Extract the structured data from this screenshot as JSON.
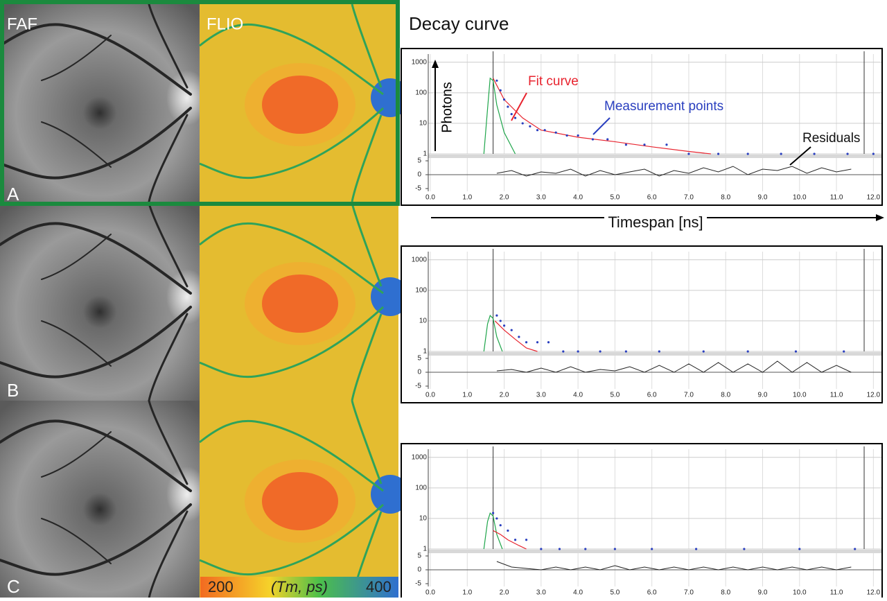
{
  "header": {
    "title": "Decay curve"
  },
  "image_labels": {
    "faf": "FAF",
    "flio": "FLIO"
  },
  "annotations": {
    "photons": "Photons",
    "fit_curve": "Fit curve",
    "measurement_points": "Measurement points",
    "residuals": "Residuals",
    "timespan": "Timespan [ns]"
  },
  "colorbar": {
    "min": "200",
    "unit": "(Tm, ps)",
    "max": "400"
  },
  "decay_axes": {
    "log_y": true,
    "grid": true,
    "xlim": [
      0,
      12.2
    ],
    "xticks": [
      {
        "value": 0,
        "label": "0.0"
      },
      {
        "value": 1,
        "label": "1.0"
      },
      {
        "value": 2,
        "label": "2.0"
      },
      {
        "value": 3,
        "label": "3.0"
      },
      {
        "value": 4,
        "label": "4.0"
      },
      {
        "value": 5,
        "label": "5.0"
      },
      {
        "value": 6,
        "label": "6.0"
      },
      {
        "value": 7,
        "label": "7.0"
      },
      {
        "value": 8,
        "label": "8.0"
      },
      {
        "value": 9,
        "label": "9.0"
      },
      {
        "value": 10,
        "label": "10.0"
      },
      {
        "value": 11,
        "label": "11.0"
      },
      {
        "value": 12,
        "label": "12.0"
      }
    ],
    "ylim": [
      1,
      1500
    ],
    "yticks": [
      1,
      10,
      100,
      1000
    ],
    "residual_ylim": [
      -6,
      6
    ],
    "residual_yticks": [
      -5,
      0,
      5
    ]
  },
  "panels": [
    {
      "label": "A",
      "chart": {
        "type": "line",
        "cursors": [
          1.7,
          11.75
        ],
        "fit": {
          "color": "#e8232e",
          "x": [
            1.7,
            2.0,
            2.5,
            3,
            4,
            5,
            6,
            7,
            7.6
          ],
          "values": [
            300,
            60,
            15,
            6,
            3.5,
            2.5,
            1.7,
            1.2,
            1
          ]
        },
        "irf": {
          "color": "#1ea54a",
          "x": [
            1.45,
            1.55,
            1.62,
            1.7,
            1.8,
            2.0,
            2.3
          ],
          "values": [
            1,
            30,
            300,
            250,
            40,
            5,
            1
          ]
        },
        "points": {
          "color": "#2a3fbf",
          "x": [
            1.8,
            1.9,
            2.0,
            2.1,
            2.2,
            2.3,
            2.5,
            2.7,
            2.9,
            3.1,
            3.4,
            3.7,
            4.0,
            4.4,
            4.8,
            5.3,
            5.8,
            6.4,
            7.0,
            7.8,
            8.6,
            9.5,
            10.4,
            11.3,
            12.0
          ],
          "values": [
            250,
            120,
            60,
            35,
            20,
            15,
            10,
            8,
            6,
            6,
            5,
            4,
            4,
            3,
            3,
            2,
            2,
            2,
            1,
            1,
            1,
            1,
            1,
            1,
            1
          ]
        },
        "residuals": {
          "color": "#222222",
          "x": [
            1.8,
            2.2,
            2.6,
            3.0,
            3.4,
            3.8,
            4.2,
            4.6,
            5.0,
            5.4,
            5.8,
            6.2,
            6.6,
            7.0,
            7.4,
            7.8,
            8.2,
            8.6,
            9.0,
            9.4,
            9.8,
            10.2,
            10.6,
            11.0,
            11.4
          ],
          "values": [
            0.5,
            1.5,
            -0.5,
            1,
            0.5,
            2,
            -0.5,
            1.5,
            0,
            1,
            2,
            -0.5,
            1.5,
            0.5,
            2.5,
            1,
            3,
            0,
            2,
            1.5,
            3,
            0.5,
            2.5,
            1,
            2
          ]
        }
      }
    },
    {
      "label": "B",
      "chart": {
        "type": "line",
        "cursors": [
          1.7,
          11.75
        ],
        "fit": {
          "color": "#e8232e",
          "x": [
            1.75,
            2.0,
            2.3,
            2.6,
            2.9
          ],
          "values": [
            10,
            5,
            2.5,
            1.3,
            1
          ]
        },
        "irf": {
          "color": "#1ea54a",
          "x": [
            1.45,
            1.55,
            1.62,
            1.7,
            1.8,
            1.95
          ],
          "values": [
            1,
            8,
            15,
            12,
            3,
            1
          ]
        },
        "points": {
          "color": "#2a3fbf",
          "x": [
            1.8,
            1.9,
            2.0,
            2.2,
            2.4,
            2.6,
            2.9,
            3.2,
            3.6,
            4.0,
            4.6,
            5.3,
            6.2,
            7.4,
            8.6,
            9.9,
            11.2
          ],
          "values": [
            15,
            10,
            7,
            5,
            3,
            2,
            2,
            2,
            1,
            1,
            1,
            1,
            1,
            1,
            1,
            1,
            1
          ]
        },
        "residuals": {
          "color": "#222222",
          "x": [
            1.8,
            2.2,
            2.6,
            3.0,
            3.4,
            3.8,
            4.2,
            4.6,
            5.0,
            5.4,
            5.8,
            6.2,
            6.6,
            7.0,
            7.4,
            7.8,
            8.2,
            8.6,
            9.0,
            9.4,
            9.8,
            10.2,
            10.6,
            11.0,
            11.4
          ],
          "values": [
            0.5,
            1,
            0,
            1.5,
            0,
            2,
            0,
            1,
            0.5,
            2,
            0,
            2.5,
            0,
            3,
            0,
            3.5,
            0,
            3,
            0,
            4,
            0,
            3.5,
            0,
            2.5,
            0
          ]
        }
      }
    },
    {
      "label": "C",
      "chart": {
        "type": "line",
        "cursors": [
          1.7,
          11.75
        ],
        "fit": {
          "color": "#e8232e",
          "x": [
            1.7,
            1.9,
            2.1,
            2.4,
            2.6
          ],
          "values": [
            4,
            3,
            2,
            1.3,
            1
          ]
        },
        "irf": {
          "color": "#1ea54a",
          "x": [
            1.45,
            1.55,
            1.62,
            1.7,
            1.8,
            1.95
          ],
          "values": [
            1,
            8,
            15,
            12,
            3,
            1
          ]
        },
        "points": {
          "color": "#2a3fbf",
          "x": [
            1.7,
            1.8,
            1.9,
            2.1,
            2.3,
            2.6,
            3.0,
            3.5,
            4.2,
            5.0,
            6.0,
            7.2,
            8.5,
            10.0,
            11.5
          ],
          "values": [
            15,
            10,
            6,
            4,
            2,
            2,
            1,
            1,
            1,
            1,
            1,
            1,
            1,
            1,
            1
          ]
        },
        "residuals": {
          "color": "#222222",
          "x": [
            1.8,
            2.2,
            2.6,
            3.0,
            3.4,
            3.8,
            4.2,
            4.6,
            5.0,
            5.4,
            5.8,
            6.2,
            6.6,
            7.0,
            7.4,
            7.8,
            8.2,
            8.6,
            9.0,
            9.4,
            9.8,
            10.2,
            10.6,
            11.0,
            11.4
          ],
          "values": [
            3,
            1,
            0.5,
            0,
            1,
            0,
            1,
            0,
            1.5,
            0,
            1,
            0,
            1,
            0,
            1,
            0,
            1,
            0,
            1,
            0,
            1,
            0,
            1,
            0,
            1
          ]
        }
      }
    }
  ]
}
